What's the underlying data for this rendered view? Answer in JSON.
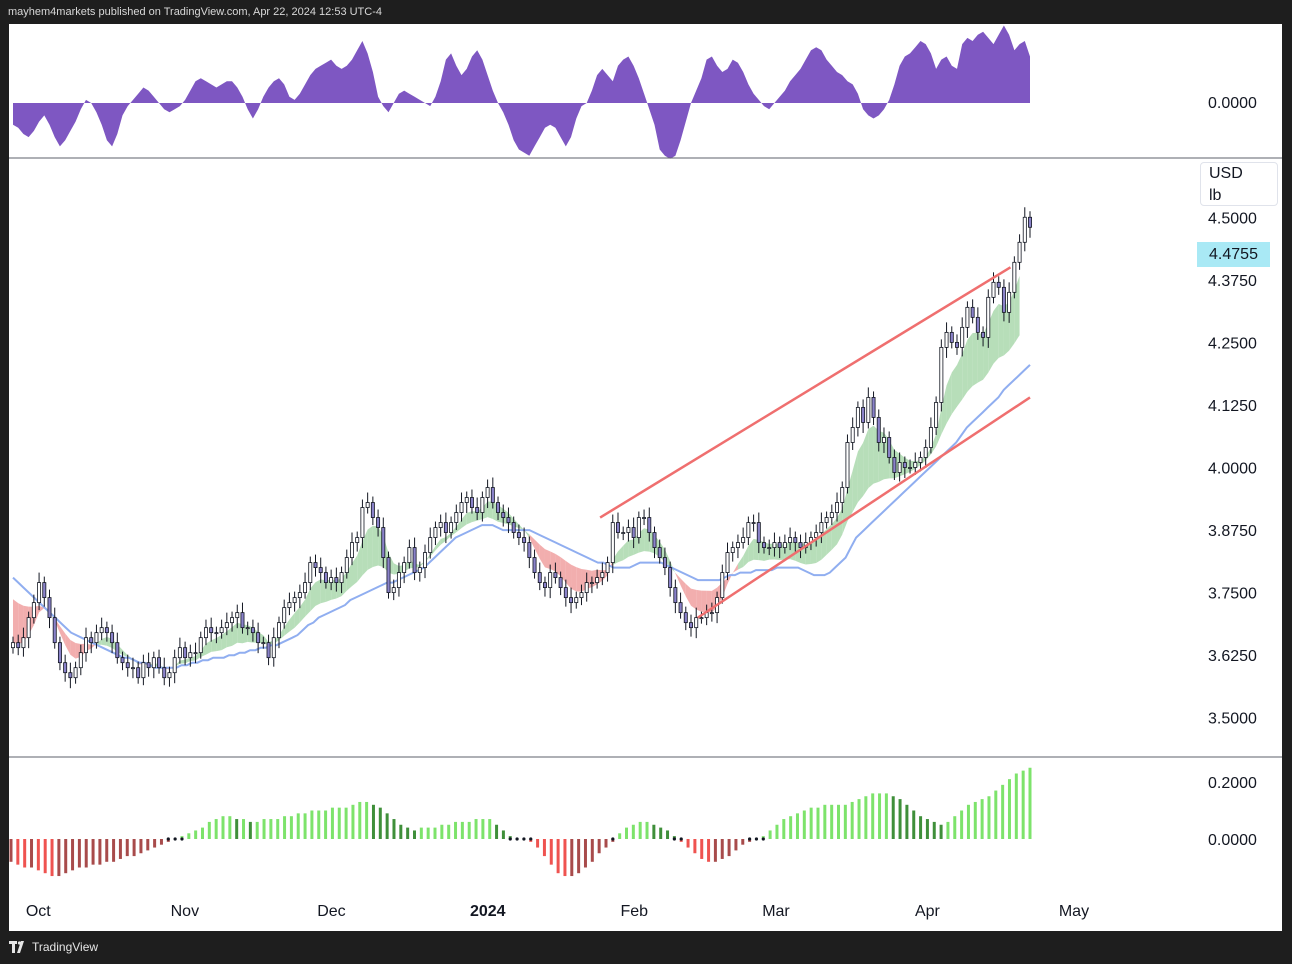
{
  "header": {
    "published_text": "mayhem4markets published on TradingView.com, Apr 22, 2024 12:53 UTC-4"
  },
  "footer": {
    "brand": "TradingView"
  },
  "units": {
    "currency": "USD",
    "unit": "lb"
  },
  "last_price_label": "4.4755",
  "colors": {
    "oscillator_fill": "#7e57c2",
    "bull_band": "#a5d6a7",
    "bear_band": "#ef9a9a",
    "moving_average": "#90aef0",
    "channel_line": "#ef6f6f",
    "hist_up": "#7de36b",
    "hist_up_weak": "#3f8f3a",
    "hist_down": "#ef5350",
    "hist_down_weak": "#a84b4b",
    "candle_up": "#ffffff",
    "candle_down": "#8a82c9",
    "price_tag": "#a9e9f5"
  },
  "chart_data": [
    {
      "type": "area",
      "panel": "oscillator",
      "ytick_labels": [
        "0.0000"
      ],
      "x_start": "2023-09-26",
      "x_end": "2024-04-22",
      "values": [
        -0.35,
        -0.4,
        -0.5,
        -0.55,
        -0.45,
        -0.3,
        -0.2,
        -0.35,
        -0.55,
        -0.7,
        -0.6,
        -0.45,
        -0.3,
        -0.1,
        0.05,
        0.0,
        -0.15,
        -0.35,
        -0.6,
        -0.7,
        -0.5,
        -0.2,
        -0.05,
        0.05,
        0.15,
        0.25,
        0.2,
        0.1,
        0.0,
        -0.1,
        -0.15,
        -0.1,
        -0.05,
        0.05,
        0.2,
        0.35,
        0.4,
        0.35,
        0.3,
        0.25,
        0.3,
        0.35,
        0.35,
        0.25,
        0.1,
        -0.1,
        -0.25,
        -0.1,
        0.1,
        0.25,
        0.35,
        0.4,
        0.3,
        0.1,
        0.05,
        0.15,
        0.3,
        0.45,
        0.55,
        0.6,
        0.65,
        0.7,
        0.6,
        0.55,
        0.6,
        0.7,
        0.85,
        1.0,
        0.8,
        0.5,
        0.1,
        -0.05,
        -0.15,
        0.0,
        0.15,
        0.2,
        0.15,
        0.1,
        0.05,
        0.0,
        -0.05,
        0.1,
        0.35,
        0.7,
        0.8,
        0.6,
        0.45,
        0.55,
        0.75,
        0.85,
        0.7,
        0.45,
        0.2,
        0.0,
        -0.15,
        -0.35,
        -0.6,
        -0.75,
        -0.8,
        -0.85,
        -0.7,
        -0.55,
        -0.4,
        -0.35,
        -0.4,
        -0.55,
        -0.7,
        -0.55,
        -0.25,
        -0.05,
        0.0,
        0.2,
        0.45,
        0.55,
        0.45,
        0.35,
        0.6,
        0.7,
        0.75,
        0.6,
        0.4,
        0.15,
        -0.1,
        -0.35,
        -0.75,
        -0.85,
        -0.9,
        -0.85,
        -0.6,
        -0.3,
        0.0,
        0.2,
        0.4,
        0.7,
        0.75,
        0.6,
        0.5,
        0.55,
        0.7,
        0.65,
        0.5,
        0.3,
        0.15,
        0.05,
        -0.05,
        -0.1,
        0.0,
        0.1,
        0.2,
        0.35,
        0.45,
        0.55,
        0.7,
        0.85,
        0.9,
        0.85,
        0.7,
        0.6,
        0.5,
        0.45,
        0.35,
        0.3,
        0.15,
        -0.1,
        -0.2,
        -0.25,
        -0.2,
        -0.1,
        0.05,
        0.3,
        0.6,
        0.75,
        0.8,
        0.9,
        1.0,
        0.95,
        0.8,
        0.55,
        0.7,
        0.75,
        0.6,
        0.55,
        0.95,
        1.05,
        1.0,
        1.1,
        1.15,
        1.05,
        0.95,
        1.1,
        1.25,
        1.1,
        0.85,
        0.95,
        1.0,
        0.75
      ]
    },
    {
      "type": "candlestick",
      "panel": "price",
      "ytick_labels": [
        "4.5000",
        "4.3750",
        "4.2500",
        "4.1250",
        "4.0000",
        "3.8750",
        "3.7500",
        "3.6250",
        "3.5000"
      ],
      "yticks": [
        4.5,
        4.375,
        4.25,
        4.125,
        4.0,
        3.875,
        3.75,
        3.625,
        3.5
      ],
      "ylim": [
        3.4375,
        4.5625
      ],
      "xtick_labels": [
        "Oct",
        "Nov",
        "Dec",
        "2024",
        "Feb",
        "Mar",
        "Apr",
        "May"
      ],
      "xtick_dates": [
        "2023-10-02",
        "2023-11-01",
        "2023-12-01",
        "2024-01-02",
        "2024-02-01",
        "2024-03-01",
        "2024-04-01",
        "2024-05-01"
      ],
      "close": [
        3.65,
        3.64,
        3.66,
        3.7,
        3.73,
        3.77,
        3.74,
        3.7,
        3.65,
        3.61,
        3.59,
        3.58,
        3.6,
        3.63,
        3.66,
        3.65,
        3.67,
        3.68,
        3.67,
        3.65,
        3.62,
        3.61,
        3.6,
        3.6,
        3.58,
        3.61,
        3.6,
        3.62,
        3.6,
        3.58,
        3.59,
        3.62,
        3.64,
        3.62,
        3.63,
        3.63,
        3.66,
        3.68,
        3.67,
        3.67,
        3.68,
        3.69,
        3.7,
        3.71,
        3.68,
        3.68,
        3.67,
        3.65,
        3.65,
        3.62,
        3.66,
        3.69,
        3.72,
        3.73,
        3.74,
        3.75,
        3.77,
        3.81,
        3.8,
        3.79,
        3.77,
        3.78,
        3.77,
        3.79,
        3.82,
        3.85,
        3.86,
        3.92,
        3.93,
        3.9,
        3.88,
        3.82,
        3.75,
        3.76,
        3.79,
        3.81,
        3.84,
        3.79,
        3.8,
        3.83,
        3.86,
        3.88,
        3.89,
        3.87,
        3.89,
        3.91,
        3.93,
        3.94,
        3.92,
        3.91,
        3.94,
        3.96,
        3.93,
        3.91,
        3.9,
        3.89,
        3.87,
        3.86,
        3.85,
        3.82,
        3.79,
        3.77,
        3.76,
        3.79,
        3.78,
        3.76,
        3.74,
        3.73,
        3.74,
        3.75,
        3.77,
        3.77,
        3.78,
        3.79,
        3.81,
        3.89,
        3.87,
        3.87,
        3.88,
        3.86,
        3.9,
        3.9,
        3.87,
        3.84,
        3.82,
        3.8,
        3.76,
        3.73,
        3.71,
        3.69,
        3.68,
        3.7,
        3.7,
        3.71,
        3.71,
        3.74,
        3.79,
        3.83,
        3.84,
        3.85,
        3.86,
        3.89,
        3.89,
        3.85,
        3.84,
        3.84,
        3.85,
        3.84,
        3.85,
        3.86,
        3.85,
        3.84,
        3.85,
        3.86,
        3.87,
        3.89,
        3.9,
        3.91,
        3.93,
        3.96,
        4.05,
        4.08,
        4.12,
        4.09,
        4.14,
        4.1,
        4.05,
        4.06,
        4.02,
        3.99,
        4.01,
        4.0,
        4.0,
        4.01,
        4.02,
        4.04,
        4.08,
        4.13,
        4.24,
        4.27,
        4.25,
        4.24,
        4.28,
        4.32,
        4.3,
        4.27,
        4.26,
        4.34,
        4.37,
        4.36,
        4.31,
        4.35,
        4.41,
        4.45,
        4.5,
        4.48
      ],
      "last": 4.4755
    },
    {
      "type": "line",
      "panel": "price",
      "series": [
        {
          "name": "",
          "kind": "moving_average",
          "values": [
            3.78,
            3.77,
            3.76,
            3.75,
            3.74,
            3.73,
            3.72,
            3.71,
            3.7,
            3.69,
            3.68,
            3.67,
            3.665,
            3.66,
            3.655,
            3.65,
            3.645,
            3.64,
            3.635,
            3.63,
            3.625,
            3.62,
            3.62,
            3.615,
            3.61,
            3.61,
            3.605,
            3.6,
            3.6,
            3.6,
            3.6,
            3.6,
            3.605,
            3.605,
            3.61,
            3.61,
            3.615,
            3.615,
            3.62,
            3.62,
            3.62,
            3.625,
            3.625,
            3.63,
            3.63,
            3.635,
            3.635,
            3.64,
            3.64,
            3.645,
            3.645,
            3.65,
            3.655,
            3.66,
            3.665,
            3.675,
            3.685,
            3.69,
            3.7,
            3.705,
            3.71,
            3.715,
            3.72,
            3.725,
            3.735,
            3.74,
            3.745,
            3.75,
            3.755,
            3.76,
            3.765,
            3.77,
            3.77,
            3.775,
            3.78,
            3.785,
            3.79,
            3.795,
            3.8,
            3.81,
            3.82,
            3.83,
            3.84,
            3.85,
            3.86,
            3.865,
            3.87,
            3.875,
            3.88,
            3.885,
            3.885,
            3.885,
            3.88,
            3.875,
            3.875,
            3.875,
            3.875,
            3.875,
            3.875,
            3.87,
            3.865,
            3.86,
            3.855,
            3.85,
            3.845,
            3.84,
            3.835,
            3.83,
            3.825,
            3.82,
            3.815,
            3.81,
            3.81,
            3.805,
            3.8,
            3.8,
            3.8,
            3.8,
            3.805,
            3.81,
            3.81,
            3.81,
            3.81,
            3.81,
            3.805,
            3.8,
            3.795,
            3.79,
            3.785,
            3.78,
            3.775,
            3.775,
            3.775,
            3.775,
            3.775,
            3.78,
            3.785,
            3.785,
            3.79,
            3.79,
            3.79,
            3.795,
            3.795,
            3.795,
            3.795,
            3.8,
            3.8,
            3.8,
            3.8,
            3.8,
            3.795,
            3.79,
            3.785,
            3.785,
            3.785,
            3.79,
            3.8,
            3.81,
            3.82,
            3.84,
            3.86,
            3.87,
            3.88,
            3.89,
            3.9,
            3.91,
            3.92,
            3.93,
            3.94,
            3.95,
            3.96,
            3.97,
            3.98,
            3.99,
            4.0,
            4.01,
            4.02,
            4.03,
            4.04,
            4.05,
            4.065,
            4.08,
            4.09,
            4.1,
            4.11,
            4.12,
            4.13,
            4.14,
            4.155,
            4.165,
            4.175,
            4.185,
            4.195,
            4.205
          ]
        }
      ],
      "channel_upper": {
        "from": {
          "date": "2024-01-25",
          "value": 3.9
        },
        "to": {
          "date": "2024-04-18",
          "value": 4.4
        }
      },
      "channel_lower": {
        "from": {
          "date": "2024-02-14",
          "value": 3.7
        },
        "to": {
          "date": "2024-04-22",
          "value": 4.14
        }
      }
    },
    {
      "type": "bar",
      "panel": "histogram",
      "ytick_labels": [
        "0.2000",
        "0.0000"
      ],
      "yticks": [
        0.2,
        0.0
      ],
      "values": [
        -0.08,
        -0.09,
        -0.1,
        -0.1,
        -0.11,
        -0.12,
        -0.13,
        -0.13,
        -0.12,
        -0.11,
        -0.1,
        -0.1,
        -0.09,
        -0.09,
        -0.08,
        -0.08,
        -0.07,
        -0.06,
        -0.06,
        -0.05,
        -0.04,
        -0.03,
        -0.02,
        -0.01,
        0.0,
        0.01,
        0.02,
        0.03,
        0.04,
        0.06,
        0.07,
        0.08,
        0.08,
        0.07,
        0.07,
        0.06,
        0.06,
        0.07,
        0.07,
        0.07,
        0.08,
        0.08,
        0.09,
        0.09,
        0.1,
        0.1,
        0.1,
        0.11,
        0.11,
        0.11,
        0.12,
        0.13,
        0.13,
        0.12,
        0.11,
        0.09,
        0.07,
        0.05,
        0.04,
        0.03,
        0.04,
        0.04,
        0.04,
        0.05,
        0.05,
        0.06,
        0.06,
        0.06,
        0.07,
        0.07,
        0.07,
        0.05,
        0.03,
        0.01,
        0.0,
        0.0,
        -0.01,
        -0.03,
        -0.06,
        -0.09,
        -0.12,
        -0.13,
        -0.13,
        -0.12,
        -0.1,
        -0.08,
        -0.05,
        -0.03,
        -0.01,
        0.02,
        0.04,
        0.05,
        0.06,
        0.06,
        0.05,
        0.04,
        0.03,
        0.01,
        -0.01,
        -0.03,
        -0.05,
        -0.07,
        -0.08,
        -0.08,
        -0.07,
        -0.06,
        -0.04,
        -0.02,
        -0.01,
        0.0,
        0.01,
        0.03,
        0.05,
        0.07,
        0.08,
        0.09,
        0.1,
        0.11,
        0.11,
        0.12,
        0.12,
        0.12,
        0.12,
        0.13,
        0.14,
        0.15,
        0.16,
        0.16,
        0.16,
        0.15,
        0.14,
        0.12,
        0.1,
        0.08,
        0.07,
        0.06,
        0.05,
        0.06,
        0.08,
        0.1,
        0.12,
        0.13,
        0.14,
        0.15,
        0.17,
        0.19,
        0.21,
        0.23,
        0.24,
        0.25
      ],
      "color_rule": "bright when rising, dim when falling; green above zero, red below zero"
    }
  ]
}
